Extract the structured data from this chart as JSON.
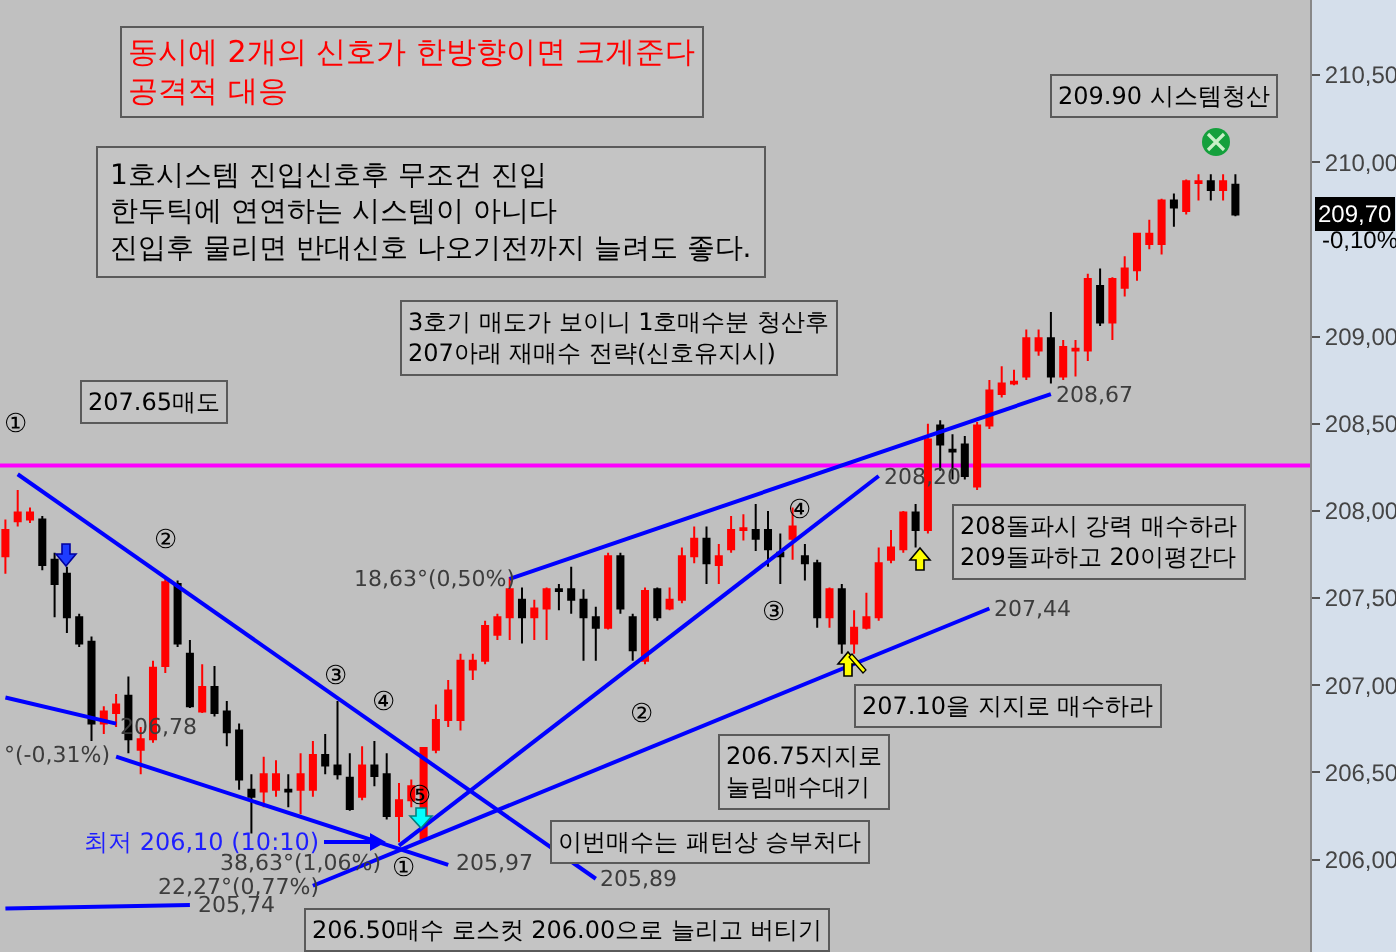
{
  "chart_data": {
    "type": "candlestick",
    "categories": [
      null,
      null,
      null,
      null,
      null,
      null,
      null,
      null,
      null,
      null,
      null,
      null,
      null,
      null,
      null,
      null,
      null,
      null,
      null,
      null,
      null,
      null,
      null,
      null,
      null,
      null,
      null,
      null,
      null,
      null,
      null,
      null,
      null,
      null,
      null,
      null,
      null,
      null,
      null,
      null,
      null,
      null,
      null,
      null,
      null,
      null,
      null,
      null,
      null,
      null,
      null,
      null,
      null,
      null,
      null,
      null,
      null,
      null,
      null,
      null,
      null,
      null,
      null,
      null,
      null,
      null,
      null,
      null,
      null,
      null,
      null,
      null,
      null,
      null,
      null,
      null,
      null,
      null,
      null,
      null,
      null,
      null,
      null,
      null,
      null,
      null,
      null,
      null,
      null,
      null,
      null,
      null,
      null,
      null,
      null,
      null,
      null,
      null,
      null,
      null,
      null
    ],
    "ohlc": [
      [
        207.74,
        207.95,
        207.64,
        207.89
      ],
      [
        207.94,
        208.12,
        207.91,
        207.99
      ],
      [
        207.95,
        208.02,
        207.93,
        207.99
      ],
      [
        207.95,
        207.97,
        207.66,
        207.69
      ],
      [
        207.72,
        207.76,
        207.39,
        207.58
      ],
      [
        207.64,
        207.68,
        207.3,
        207.39
      ],
      [
        207.39,
        207.41,
        207.22,
        207.24
      ],
      [
        207.25,
        207.28,
        206.68,
        206.78
      ],
      [
        206.78,
        206.88,
        206.72,
        206.85
      ],
      [
        206.84,
        206.95,
        206.76,
        206.89
      ],
      [
        206.94,
        207.05,
        206.61,
        206.69
      ],
      [
        206.63,
        206.76,
        206.49,
        206.69
      ],
      [
        206.69,
        207.14,
        206.67,
        207.1
      ],
      [
        207.11,
        207.62,
        207.07,
        207.59
      ],
      [
        207.58,
        207.6,
        207.22,
        207.24
      ],
      [
        207.18,
        207.26,
        206.87,
        206.88
      ],
      [
        206.85,
        207.12,
        206.84,
        206.99
      ],
      [
        206.99,
        207.11,
        206.82,
        206.84
      ],
      [
        206.85,
        206.91,
        206.65,
        206.73
      ],
      [
        206.74,
        206.78,
        206.4,
        206.46
      ],
      [
        206.4,
        206.49,
        206.15,
        206.36
      ],
      [
        206.39,
        206.59,
        206.3,
        206.49
      ],
      [
        206.4,
        206.57,
        206.36,
        206.49
      ],
      [
        206.4,
        206.49,
        206.3,
        206.39
      ],
      [
        206.4,
        206.61,
        206.26,
        206.49
      ],
      [
        206.4,
        206.68,
        206.36,
        206.6
      ],
      [
        206.6,
        206.72,
        206.49,
        206.54
      ],
      [
        206.54,
        206.91,
        206.46,
        206.49
      ],
      [
        206.47,
        206.61,
        206.28,
        206.29
      ],
      [
        206.36,
        206.65,
        206.34,
        206.54
      ],
      [
        206.54,
        206.68,
        206.42,
        206.48
      ],
      [
        206.49,
        206.61,
        206.23,
        206.25
      ],
      [
        206.25,
        206.44,
        206.1,
        206.34
      ],
      [
        206.34,
        206.46,
        206.3,
        206.42
      ],
      [
        206.12,
        206.64,
        206.11,
        206.64
      ],
      [
        206.63,
        206.89,
        206.61,
        206.8
      ],
      [
        206.8,
        207.03,
        206.76,
        206.97
      ],
      [
        206.8,
        207.18,
        206.74,
        207.14
      ],
      [
        207.09,
        207.18,
        207.03,
        207.14
      ],
      [
        207.14,
        207.37,
        207.12,
        207.34
      ],
      [
        207.29,
        207.41,
        207.26,
        207.39
      ],
      [
        207.39,
        207.62,
        207.26,
        207.55
      ],
      [
        207.49,
        207.56,
        207.24,
        207.39
      ],
      [
        207.39,
        207.49,
        207.26,
        207.44
      ],
      [
        207.44,
        207.56,
        207.26,
        207.55
      ],
      [
        207.55,
        207.58,
        207.43,
        207.54
      ],
      [
        207.55,
        207.68,
        207.41,
        207.49
      ],
      [
        207.49,
        207.55,
        207.14,
        207.39
      ],
      [
        207.39,
        207.45,
        207.14,
        207.33
      ],
      [
        207.33,
        207.76,
        207.32,
        207.74
      ],
      [
        207.74,
        207.76,
        207.41,
        207.44
      ],
      [
        207.39,
        207.41,
        207.14,
        207.2
      ],
      [
        207.14,
        207.56,
        207.12,
        207.54
      ],
      [
        207.55,
        207.56,
        207.37,
        207.39
      ],
      [
        207.44,
        207.56,
        207.43,
        207.49
      ],
      [
        207.49,
        207.79,
        207.47,
        207.74
      ],
      [
        207.74,
        207.91,
        207.7,
        207.84
      ],
      [
        207.84,
        207.91,
        207.58,
        207.7
      ],
      [
        207.69,
        207.81,
        207.58,
        207.74
      ],
      [
        207.78,
        207.97,
        207.76,
        207.89
      ],
      [
        207.89,
        207.98,
        207.83,
        207.9
      ],
      [
        207.89,
        208.04,
        207.77,
        207.84
      ],
      [
        207.89,
        208.0,
        207.68,
        207.78
      ],
      [
        207.76,
        207.87,
        207.58,
        207.74
      ],
      [
        207.84,
        208.02,
        207.72,
        207.91
      ],
      [
        207.74,
        207.81,
        207.6,
        207.7
      ],
      [
        207.7,
        207.72,
        207.33,
        207.39
      ],
      [
        207.39,
        207.56,
        207.33,
        207.55
      ],
      [
        207.55,
        207.58,
        207.18,
        207.24
      ],
      [
        207.24,
        207.43,
        207.18,
        207.33
      ],
      [
        207.33,
        207.53,
        207.32,
        207.39
      ],
      [
        207.39,
        207.79,
        207.37,
        207.7
      ],
      [
        207.72,
        207.89,
        207.7,
        207.79
      ],
      [
        207.78,
        208.0,
        207.76,
        207.99
      ],
      [
        207.99,
        208.04,
        207.79,
        207.89
      ],
      [
        207.89,
        208.5,
        207.87,
        208.41
      ],
      [
        208.49,
        208.52,
        208.23,
        208.38
      ],
      [
        208.35,
        208.44,
        208.18,
        208.34
      ],
      [
        208.38,
        208.43,
        208.18,
        208.2
      ],
      [
        208.14,
        208.51,
        208.12,
        208.49
      ],
      [
        208.49,
        208.75,
        208.47,
        208.69
      ],
      [
        208.67,
        208.83,
        208.65,
        208.73
      ],
      [
        208.73,
        208.81,
        208.72,
        208.74
      ],
      [
        208.77,
        209.04,
        208.75,
        208.99
      ],
      [
        208.92,
        209.04,
        208.89,
        208.99
      ],
      [
        208.99,
        209.14,
        208.73,
        208.77
      ],
      [
        208.77,
        208.98,
        208.75,
        208.94
      ],
      [
        208.92,
        208.98,
        208.77,
        208.93
      ],
      [
        208.92,
        209.36,
        208.86,
        209.33
      ],
      [
        209.29,
        209.39,
        209.06,
        209.08
      ],
      [
        209.08,
        209.34,
        208.98,
        209.33
      ],
      [
        209.28,
        209.46,
        209.23,
        209.39
      ],
      [
        209.38,
        209.59,
        209.32,
        209.59
      ],
      [
        209.53,
        209.67,
        209.5,
        209.59
      ],
      [
        209.53,
        209.79,
        209.47,
        209.78
      ],
      [
        209.78,
        209.82,
        209.63,
        209.74
      ],
      [
        209.72,
        209.9,
        209.7,
        209.89
      ],
      [
        209.88,
        209.93,
        209.78,
        209.89
      ],
      [
        209.89,
        209.93,
        209.78,
        209.84
      ],
      [
        209.84,
        209.93,
        209.78,
        209.89
      ],
      [
        209.87,
        209.93,
        209.69,
        209.7
      ]
    ],
    "colors": [
      "#ff0000",
      "#ff0000",
      "#ff0000",
      "#000000",
      "#000000",
      "#000000",
      "#000000",
      "#000000",
      "#ff0000",
      "#ff0000",
      "#000000",
      "#ff0000",
      "#ff0000",
      "#ff0000",
      "#000000",
      "#000000",
      "#ff0000",
      "#000000",
      "#000000",
      "#000000",
      "#000000",
      "#ff0000",
      "#ff0000",
      "#000000",
      "#ff0000",
      "#ff0000",
      "#000000",
      "#000000",
      "#000000",
      "#ff0000",
      "#000000",
      "#000000",
      "#ff0000",
      "#ff0000",
      "#ff0000",
      "#ff0000",
      "#ff0000",
      "#ff0000",
      "#ff0000",
      "#ff0000",
      "#ff0000",
      "#ff0000",
      "#000000",
      "#ff0000",
      "#ff0000",
      "#000000",
      "#000000",
      "#000000",
      "#000000",
      "#ff0000",
      "#000000",
      "#000000",
      "#ff0000",
      "#000000",
      "#ff0000",
      "#ff0000",
      "#ff0000",
      "#000000",
      "#ff0000",
      "#ff0000",
      "#ff0000",
      "#000000",
      "#000000",
      "#000000",
      "#ff0000",
      "#000000",
      "#000000",
      "#ff0000",
      "#000000",
      "#ff0000",
      "#ff0000",
      "#ff0000",
      "#ff0000",
      "#ff0000",
      "#000000",
      "#ff0000",
      "#000000",
      "#000000",
      "#000000",
      "#ff0000",
      "#ff0000",
      "#ff0000",
      "#ff0000",
      "#ff0000",
      "#ff0000",
      "#000000",
      "#ff0000",
      "#ff0000",
      "#ff0000",
      "#000000",
      "#ff0000",
      "#ff0000",
      "#ff0000",
      "#ff0000",
      "#ff0000",
      "#000000",
      "#ff0000",
      "#ff0000",
      "#000000",
      "#ff0000",
      "#000000"
    ],
    "series": [
      {
        "type": "line",
        "color": "#0000ff",
        "values": [
          null,
          208.21,
          null,
          null,
          null,
          null,
          null,
          null,
          null,
          null,
          null,
          null,
          null,
          null,
          null,
          null,
          null,
          null,
          null,
          null,
          null,
          null,
          null,
          null,
          null,
          null,
          null,
          null,
          null,
          null,
          null,
          null,
          null,
          null,
          null,
          null,
          null,
          null,
          null,
          null,
          null,
          null,
          null,
          null,
          null,
          null,
          null,
          null,
          205.89,
          null,
          null,
          null,
          null,
          null,
          null,
          null,
          null,
          null,
          null,
          null,
          null,
          null,
          null,
          null,
          null,
          null,
          null,
          null,
          null,
          null,
          null,
          null,
          null,
          null,
          null,
          null,
          null,
          null,
          null,
          null,
          null,
          null,
          null,
          null,
          null,
          null,
          null,
          null,
          null,
          null,
          null,
          null,
          null,
          null,
          null,
          null,
          null,
          null,
          null,
          null,
          null
        ]
      },
      {
        "type": "line",
        "color": "#0000ff",
        "values": [
          206.93,
          null,
          null,
          null,
          null,
          null,
          null,
          null,
          null,
          206.78,
          null,
          null,
          null,
          null,
          null,
          null,
          null,
          null,
          null,
          null,
          null,
          null,
          null,
          null,
          null,
          null,
          null,
          null,
          null,
          null,
          null,
          null,
          null,
          null,
          null,
          null,
          null,
          null,
          null,
          null,
          null,
          null,
          null,
          null,
          null,
          null,
          null,
          null,
          null,
          null,
          null,
          null,
          null,
          null,
          null,
          null,
          null,
          null,
          null,
          null,
          null,
          null,
          null,
          null,
          null,
          null,
          null,
          null,
          null,
          null,
          null,
          null,
          null,
          null,
          null,
          null,
          null,
          null,
          null,
          null,
          null,
          null,
          null,
          null,
          null,
          null,
          null,
          null,
          null,
          null,
          null,
          null,
          null,
          null,
          null,
          null,
          null,
          null,
          null,
          null,
          null
        ]
      },
      {
        "type": "line",
        "color": "#0000ff",
        "values": [
          null,
          null,
          null,
          null,
          null,
          null,
          null,
          null,
          null,
          206.59,
          null,
          null,
          null,
          null,
          null,
          null,
          null,
          null,
          null,
          null,
          null,
          null,
          null,
          null,
          null,
          null,
          null,
          null,
          null,
          null,
          null,
          null,
          null,
          null,
          null,
          null,
          205.97,
          null,
          null,
          null,
          null,
          null,
          null,
          null,
          null,
          null,
          null,
          null,
          null,
          null,
          null,
          null,
          null,
          null,
          null,
          null,
          null,
          null,
          null,
          null,
          null,
          null,
          null,
          null,
          null,
          null,
          null,
          null,
          null,
          null,
          null,
          null,
          null,
          null,
          null,
          null,
          null,
          null,
          null,
          null,
          null,
          null,
          null,
          null,
          null,
          null,
          null,
          null,
          null,
          null,
          null,
          null,
          null,
          null,
          null,
          null,
          null,
          null,
          null,
          null,
          null
        ]
      },
      {
        "type": "line",
        "color": "#0000ff",
        "values": [
          205.72,
          null,
          null,
          null,
          null,
          null,
          null,
          null,
          null,
          null,
          null,
          null,
          null,
          null,
          null,
          205.74,
          null,
          null,
          null,
          null,
          null,
          null,
          null,
          null,
          null,
          null,
          null,
          null,
          null,
          null,
          null,
          null,
          null,
          null,
          null,
          null,
          null,
          null,
          null,
          null,
          null,
          null,
          null,
          null,
          null,
          null,
          null,
          null,
          null,
          null,
          null,
          null,
          null,
          null,
          null,
          null,
          null,
          null,
          null,
          null,
          null,
          null,
          null,
          null,
          null,
          null,
          null,
          null,
          null,
          null,
          null,
          null,
          null,
          null,
          null,
          null,
          null,
          null,
          null,
          null,
          null,
          null,
          null,
          null,
          null,
          null,
          null,
          null,
          null,
          null,
          null,
          null,
          null,
          null,
          null,
          null,
          null,
          null,
          null,
          null,
          null
        ]
      },
      {
        "type": "line",
        "color": "#0000ff",
        "values": [
          null,
          null,
          null,
          null,
          null,
          null,
          null,
          null,
          null,
          null,
          null,
          null,
          null,
          null,
          null,
          null,
          null,
          null,
          null,
          null,
          null,
          null,
          null,
          null,
          null,
          null,
          null,
          null,
          null,
          null,
          null,
          null,
          206.08,
          null,
          null,
          null,
          null,
          null,
          null,
          null,
          null,
          null,
          null,
          null,
          null,
          null,
          null,
          null,
          null,
          null,
          null,
          null,
          null,
          null,
          null,
          null,
          null,
          null,
          null,
          null,
          null,
          null,
          null,
          null,
          null,
          null,
          null,
          null,
          null,
          null,
          null,
          208.2,
          null,
          null,
          null,
          null,
          null,
          null,
          null,
          null,
          null,
          null,
          null,
          null,
          null,
          null,
          null,
          null,
          null,
          null,
          null,
          null,
          null,
          null,
          null,
          null,
          null,
          null,
          null,
          null,
          null
        ]
      },
      {
        "type": "line",
        "color": "#0000ff",
        "values": [
          null,
          null,
          null,
          null,
          null,
          null,
          null,
          null,
          null,
          null,
          null,
          null,
          null,
          null,
          null,
          null,
          null,
          null,
          null,
          null,
          null,
          null,
          null,
          null,
          null,
          205.85,
          null,
          null,
          null,
          null,
          null,
          null,
          null,
          null,
          null,
          null,
          null,
          null,
          null,
          null,
          null,
          null,
          null,
          null,
          null,
          null,
          null,
          null,
          null,
          null,
          null,
          null,
          null,
          null,
          null,
          null,
          null,
          null,
          null,
          null,
          null,
          null,
          null,
          null,
          null,
          null,
          null,
          null,
          null,
          null,
          null,
          null,
          null,
          null,
          null,
          null,
          null,
          null,
          null,
          null,
          207.44,
          null,
          null,
          null,
          null,
          null,
          null,
          null,
          null,
          null,
          null,
          null,
          null,
          null,
          null,
          null,
          null,
          null,
          null,
          null,
          null
        ]
      },
      {
        "type": "line",
        "color": "#0000ff",
        "values": [
          null,
          null,
          null,
          null,
          null,
          null,
          null,
          null,
          null,
          null,
          null,
          null,
          null,
          null,
          null,
          null,
          null,
          null,
          null,
          null,
          null,
          null,
          null,
          null,
          null,
          null,
          null,
          null,
          null,
          null,
          null,
          null,
          null,
          null,
          null,
          null,
          null,
          null,
          null,
          null,
          null,
          207.61,
          null,
          null,
          null,
          null,
          null,
          null,
          null,
          null,
          null,
          null,
          null,
          null,
          null,
          null,
          null,
          null,
          null,
          null,
          null,
          null,
          null,
          null,
          null,
          null,
          null,
          null,
          null,
          null,
          null,
          null,
          null,
          null,
          null,
          null,
          null,
          null,
          null,
          null,
          null,
          null,
          null,
          null,
          null,
          208.67,
          null,
          null,
          null,
          null,
          null,
          null,
          null,
          null,
          null,
          null,
          null,
          null,
          null,
          null,
          null
        ]
      }
    ],
    "ref_lines": [
      {
        "axis": "y",
        "value": 208.26,
        "color": "#ff00ff"
      }
    ],
    "ylim": [
      205.47,
      210.93
    ],
    "yticks": [
      {
        "value": 206,
        "label": "206,00"
      },
      {
        "value": 206.5,
        "label": "206,50"
      },
      {
        "value": 207,
        "label": "207,00"
      },
      {
        "value": 207.5,
        "label": "207,50"
      },
      {
        "value": 208,
        "label": "208,00"
      },
      {
        "value": 208.5,
        "label": "208,50"
      },
      {
        "value": 209,
        "label": "209,00"
      },
      {
        "value": 210,
        "label": "210,00"
      },
      {
        "value": 210.5,
        "label": "210,50"
      }
    ],
    "tick_labels": "y",
    "annotations": [
      "동시에 2개의 신호가 한방향이면 크게준다\n공격적 대응",
      "1호시스템 진입신호후 무조건 진입\n한두틱에 연연하는 시스템이 아니다\n진입후 물리면 반대신호 나오기전까지 늘려도 좋다.",
      "3호기 매도가 보이니 1호매수분 청산후\n207아래 재매수 전략(신호유지시)",
      "207.65매도",
      "209.90 시스템청산",
      "208돌파시 강력 매수하라\n209돌파하고 20이평간다",
      "207.10을 지지로 매수하라",
      "206.75지지로\n눌림매수대기",
      "이번매수는 패턴상 승부처다",
      "206.50매수 로스컷 206.00으로 늘리고 버티기",
      "최저 206,10 (10:10)",
      "18,63°(0,50%)",
      "°(-0,31%)",
      "206,78",
      "38,63°(1,06%)",
      "22,27°(0,77%)",
      "205,74",
      "205,97",
      "205,89",
      "208,20",
      "208,67",
      "207,44",
      "①",
      "②",
      "③",
      "④",
      "⑤",
      "①",
      "②",
      "③",
      "④",
      "209,70",
      "-0,10%"
    ]
  }
}
